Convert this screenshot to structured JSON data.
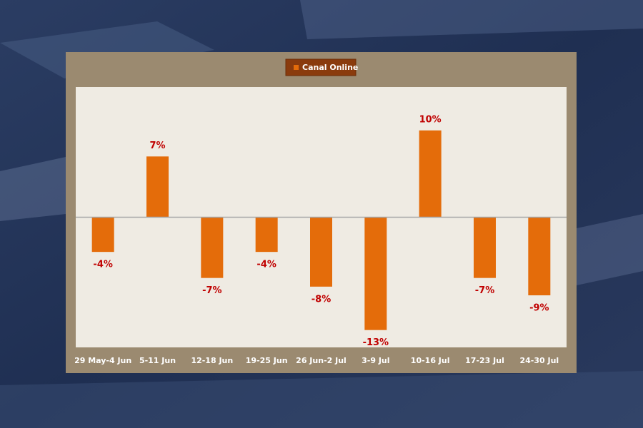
{
  "chart_data": {
    "type": "bar",
    "categories": [
      "29 May-4 Jun",
      "5-11 Jun",
      "12-18 Jun",
      "19-25 Jun",
      "26 Jun-2 Jul",
      "3-9 Jul",
      "10-16 Jul",
      "17-23 Jul",
      "24-30 Jul"
    ],
    "series": [
      {
        "name": "Canal Online",
        "color": "#e46c0a",
        "values": [
          -4,
          7,
          -7,
          -4,
          -8,
          -13,
          10,
          -7,
          -9
        ],
        "value_labels": [
          "-4%",
          "7%",
          "-7%",
          "-4%",
          "-8%",
          "-13%",
          "10%",
          "-7%",
          "-9%"
        ]
      }
    ],
    "ylim": [
      -15,
      15
    ],
    "legend": "top",
    "label_color": "#c00000"
  }
}
